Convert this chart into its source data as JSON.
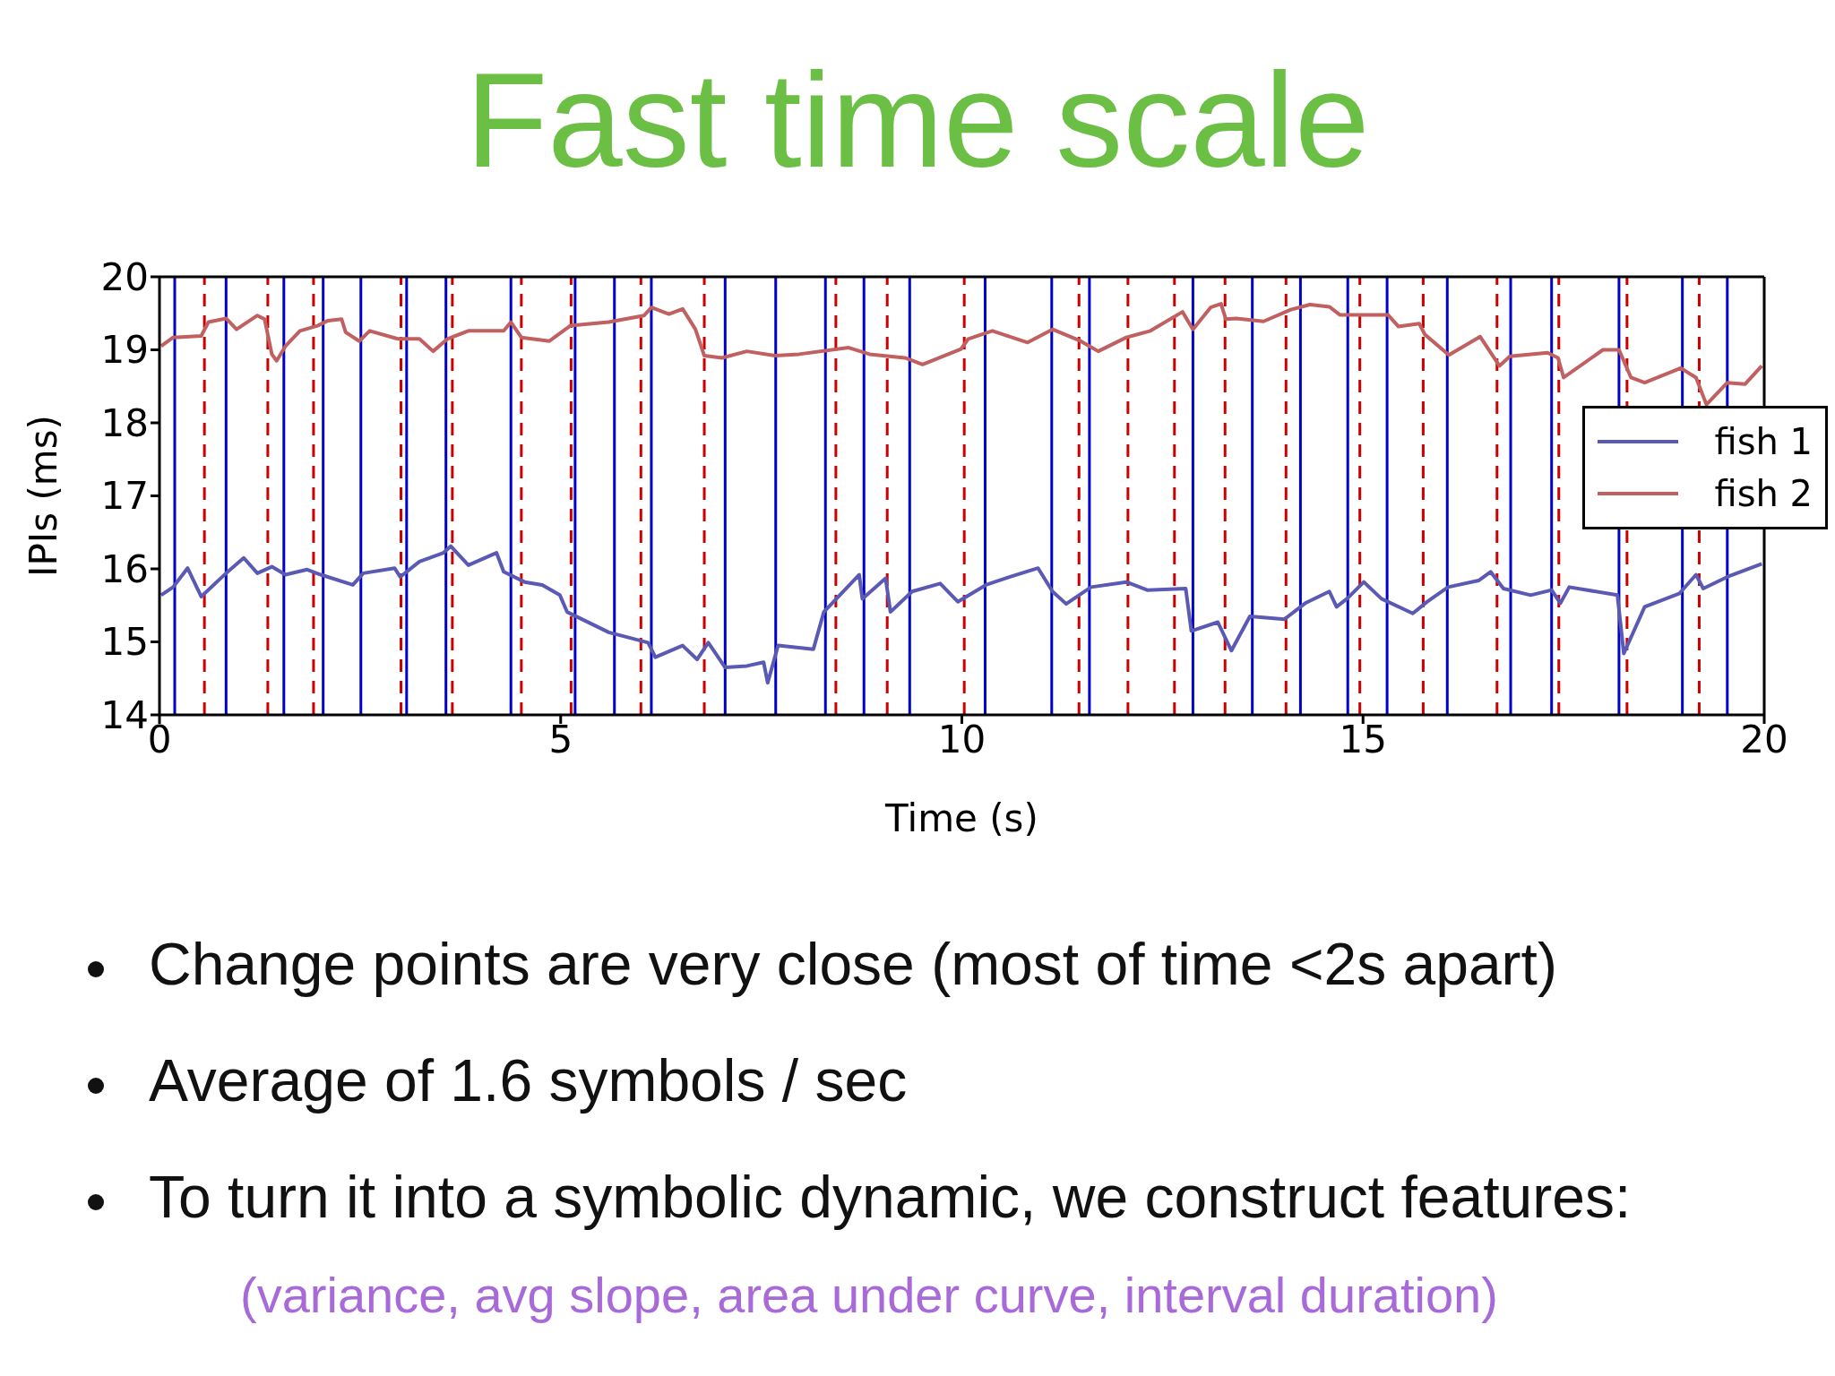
{
  "chart_data": {
    "type": "line",
    "title": "Fast time scale",
    "xlabel": "Time (s)",
    "ylabel": "IPIs (ms)",
    "xlim": [
      0,
      20
    ],
    "xticks": [
      0,
      5,
      10,
      15,
      20
    ],
    "ylim": [
      14,
      20
    ],
    "yticks": [
      14,
      15,
      16,
      17,
      18,
      19,
      20
    ],
    "legend": "right",
    "marker": "none",
    "line_style": "solid",
    "series": [
      {
        "name": "fish 1",
        "color": "#5a5ab4",
        "x": [
          0.02,
          0.17,
          0.35,
          0.52,
          0.83,
          1.05,
          1.22,
          1.4,
          1.57,
          1.84,
          2.01,
          2.41,
          2.54,
          2.93,
          3.0,
          3.24,
          3.54,
          3.63,
          3.85,
          4.2,
          4.29,
          4.55,
          4.77,
          4.99,
          5.08,
          5.6,
          6.09,
          6.18,
          6.52,
          6.7,
          6.84,
          7.05,
          7.32,
          7.53,
          7.58,
          7.71,
          8.15,
          8.28,
          8.72,
          8.76,
          9.05,
          9.11,
          9.38,
          9.73,
          9.95,
          10.3,
          10.6,
          10.95,
          11.13,
          11.3,
          11.61,
          12.05,
          12.31,
          12.79,
          12.86,
          13.19,
          13.36,
          13.59,
          14.02,
          14.28,
          14.58,
          14.67,
          14.8,
          15.01,
          15.23,
          15.62,
          15.8,
          16.06,
          16.44,
          16.59,
          16.75,
          17.09,
          17.35,
          17.46,
          17.57,
          18.17,
          18.25,
          18.51,
          18.94,
          19.15,
          19.24,
          19.54,
          19.97
        ],
        "values": [
          15.64,
          15.75,
          16.01,
          15.62,
          15.94,
          16.15,
          15.94,
          16.03,
          15.92,
          15.99,
          15.92,
          15.78,
          15.94,
          16.01,
          15.89,
          16.1,
          16.22,
          16.31,
          16.05,
          16.22,
          15.96,
          15.82,
          15.78,
          15.64,
          15.41,
          15.13,
          14.99,
          14.79,
          14.95,
          14.76,
          14.99,
          14.65,
          14.67,
          14.72,
          14.44,
          14.95,
          14.9,
          15.41,
          15.92,
          15.59,
          15.87,
          15.41,
          15.69,
          15.8,
          15.55,
          15.78,
          15.89,
          16.01,
          15.69,
          15.52,
          15.75,
          15.82,
          15.71,
          15.73,
          15.15,
          15.27,
          14.88,
          15.35,
          15.31,
          15.53,
          15.69,
          15.48,
          15.59,
          15.82,
          15.59,
          15.39,
          15.55,
          15.75,
          15.84,
          15.96,
          15.73,
          15.64,
          15.71,
          15.53,
          15.75,
          15.64,
          14.84,
          15.48,
          15.66,
          15.92,
          15.73,
          15.89,
          16.07
        ]
      },
      {
        "name": "fish 2",
        "color": "#c06060",
        "x": [
          0.02,
          0.17,
          0.52,
          0.61,
          0.83,
          0.96,
          1.22,
          1.31,
          1.4,
          1.46,
          1.57,
          1.75,
          1.97,
          2.1,
          2.27,
          2.32,
          2.49,
          2.62,
          2.97,
          3.24,
          3.41,
          3.59,
          3.85,
          4.29,
          4.38,
          4.51,
          4.86,
          5.12,
          5.6,
          6.04,
          6.13,
          6.35,
          6.52,
          6.68,
          6.79,
          7.01,
          7.32,
          7.67,
          7.97,
          8.59,
          8.85,
          9.29,
          9.51,
          9.99,
          10.08,
          10.38,
          10.82,
          11.13,
          11.48,
          11.7,
          12.05,
          12.35,
          12.75,
          12.88,
          13.1,
          13.23,
          13.29,
          13.42,
          13.76,
          14.1,
          14.34,
          14.58,
          14.71,
          15.31,
          15.44,
          15.7,
          15.77,
          16.07,
          16.18,
          16.46,
          16.7,
          16.83,
          17.3,
          17.43,
          17.5,
          17.99,
          18.19,
          18.34,
          18.51,
          18.96,
          19.15,
          19.28,
          19.54,
          19.76,
          19.97
        ],
        "values": [
          19.05,
          19.17,
          19.19,
          19.38,
          19.43,
          19.28,
          19.47,
          19.42,
          18.94,
          18.85,
          19.05,
          19.26,
          19.33,
          19.4,
          19.42,
          19.24,
          19.12,
          19.26,
          19.15,
          19.15,
          18.98,
          19.15,
          19.26,
          19.26,
          19.38,
          19.17,
          19.12,
          19.33,
          19.38,
          19.47,
          19.58,
          19.49,
          19.56,
          19.28,
          18.92,
          18.89,
          18.98,
          18.92,
          18.94,
          19.03,
          18.94,
          18.89,
          18.8,
          19.01,
          19.15,
          19.26,
          19.1,
          19.28,
          19.12,
          18.98,
          19.17,
          19.26,
          19.52,
          19.28,
          19.58,
          19.63,
          19.42,
          19.43,
          19.39,
          19.55,
          19.62,
          19.59,
          19.48,
          19.48,
          19.32,
          19.36,
          19.21,
          18.93,
          19.0,
          19.18,
          18.78,
          18.91,
          18.96,
          18.89,
          18.62,
          19.0,
          19.0,
          18.62,
          18.55,
          18.75,
          18.62,
          18.25,
          18.55,
          18.53,
          18.78
        ]
      }
    ],
    "ref_lines": [
      {
        "axis": "x",
        "value": 0.19,
        "color": "#0000cc",
        "line_style": "solid"
      },
      {
        "axis": "x",
        "value": 0.83,
        "color": "#0000cc",
        "line_style": "solid"
      },
      {
        "axis": "x",
        "value": 1.55,
        "color": "#0000cc",
        "line_style": "solid"
      },
      {
        "axis": "x",
        "value": 2.04,
        "color": "#0000cc",
        "line_style": "solid"
      },
      {
        "axis": "x",
        "value": 2.51,
        "color": "#0000cc",
        "line_style": "solid"
      },
      {
        "axis": "x",
        "value": 3.08,
        "color": "#0000cc",
        "line_style": "solid"
      },
      {
        "axis": "x",
        "value": 3.57,
        "color": "#0000cc",
        "line_style": "solid"
      },
      {
        "axis": "x",
        "value": 4.38,
        "color": "#0000cc",
        "line_style": "solid"
      },
      {
        "axis": "x",
        "value": 5.18,
        "color": "#0000cc",
        "line_style": "solid"
      },
      {
        "axis": "x",
        "value": 5.67,
        "color": "#0000cc",
        "line_style": "solid"
      },
      {
        "axis": "x",
        "value": 6.13,
        "color": "#0000cc",
        "line_style": "solid"
      },
      {
        "axis": "x",
        "value": 7.05,
        "color": "#0000cc",
        "line_style": "solid"
      },
      {
        "axis": "x",
        "value": 7.68,
        "color": "#0000cc",
        "line_style": "solid"
      },
      {
        "axis": "x",
        "value": 8.3,
        "color": "#0000cc",
        "line_style": "solid"
      },
      {
        "axis": "x",
        "value": 8.78,
        "color": "#0000cc",
        "line_style": "solid"
      },
      {
        "axis": "x",
        "value": 9.35,
        "color": "#0000cc",
        "line_style": "solid"
      },
      {
        "axis": "x",
        "value": 10.29,
        "color": "#0000cc",
        "line_style": "solid"
      },
      {
        "axis": "x",
        "value": 11.12,
        "color": "#0000cc",
        "line_style": "solid"
      },
      {
        "axis": "x",
        "value": 11.59,
        "color": "#0000cc",
        "line_style": "solid"
      },
      {
        "axis": "x",
        "value": 12.88,
        "color": "#0000cc",
        "line_style": "solid"
      },
      {
        "axis": "x",
        "value": 13.62,
        "color": "#0000cc",
        "line_style": "solid"
      },
      {
        "axis": "x",
        "value": 14.22,
        "color": "#0000cc",
        "line_style": "solid"
      },
      {
        "axis": "x",
        "value": 14.81,
        "color": "#0000cc",
        "line_style": "solid"
      },
      {
        "axis": "x",
        "value": 15.3,
        "color": "#0000cc",
        "line_style": "solid"
      },
      {
        "axis": "x",
        "value": 16.05,
        "color": "#0000cc",
        "line_style": "solid"
      },
      {
        "axis": "x",
        "value": 16.84,
        "color": "#0000cc",
        "line_style": "solid"
      },
      {
        "axis": "x",
        "value": 17.35,
        "color": "#0000cc",
        "line_style": "solid"
      },
      {
        "axis": "x",
        "value": 18.19,
        "color": "#0000cc",
        "line_style": "solid"
      },
      {
        "axis": "x",
        "value": 18.98,
        "color": "#0000cc",
        "line_style": "solid"
      },
      {
        "axis": "x",
        "value": 19.54,
        "color": "#0000cc",
        "line_style": "solid"
      },
      {
        "axis": "x",
        "value": 0.56,
        "color": "#cc0000",
        "line_style": "dashed"
      },
      {
        "axis": "x",
        "value": 1.35,
        "color": "#cc0000",
        "line_style": "dashed"
      },
      {
        "axis": "x",
        "value": 1.92,
        "color": "#cc0000",
        "line_style": "dashed"
      },
      {
        "axis": "x",
        "value": 3.01,
        "color": "#cc0000",
        "line_style": "dashed"
      },
      {
        "axis": "x",
        "value": 3.65,
        "color": "#cc0000",
        "line_style": "dashed"
      },
      {
        "axis": "x",
        "value": 4.51,
        "color": "#cc0000",
        "line_style": "dashed"
      },
      {
        "axis": "x",
        "value": 5.13,
        "color": "#cc0000",
        "line_style": "dashed"
      },
      {
        "axis": "x",
        "value": 6.0,
        "color": "#cc0000",
        "line_style": "dashed"
      },
      {
        "axis": "x",
        "value": 6.79,
        "color": "#cc0000",
        "line_style": "dashed"
      },
      {
        "axis": "x",
        "value": 8.43,
        "color": "#cc0000",
        "line_style": "dashed"
      },
      {
        "axis": "x",
        "value": 9.07,
        "color": "#cc0000",
        "line_style": "dashed"
      },
      {
        "axis": "x",
        "value": 10.03,
        "color": "#cc0000",
        "line_style": "dashed"
      },
      {
        "axis": "x",
        "value": 11.46,
        "color": "#cc0000",
        "line_style": "dashed"
      },
      {
        "axis": "x",
        "value": 12.07,
        "color": "#cc0000",
        "line_style": "dashed"
      },
      {
        "axis": "x",
        "value": 12.65,
        "color": "#cc0000",
        "line_style": "dashed"
      },
      {
        "axis": "x",
        "value": 13.28,
        "color": "#cc0000",
        "line_style": "dashed"
      },
      {
        "axis": "x",
        "value": 14.04,
        "color": "#cc0000",
        "line_style": "dashed"
      },
      {
        "axis": "x",
        "value": 14.96,
        "color": "#cc0000",
        "line_style": "dashed"
      },
      {
        "axis": "x",
        "value": 15.75,
        "color": "#cc0000",
        "line_style": "dashed"
      },
      {
        "axis": "x",
        "value": 16.67,
        "color": "#cc0000",
        "line_style": "dashed"
      },
      {
        "axis": "x",
        "value": 17.44,
        "color": "#cc0000",
        "line_style": "dashed"
      },
      {
        "axis": "x",
        "value": 18.29,
        "color": "#cc0000",
        "line_style": "dashed"
      },
      {
        "axis": "x",
        "value": 19.19,
        "color": "#cc0000",
        "line_style": "dashed"
      }
    ],
    "annotations": [
      "Change points are very close (most of time <2s apart)",
      "Average of 1.6 symbols / sec",
      "To turn it into a symbolic dynamic, we construct features:",
      "(variance, avg slope, area under curve, interval duration)"
    ]
  }
}
